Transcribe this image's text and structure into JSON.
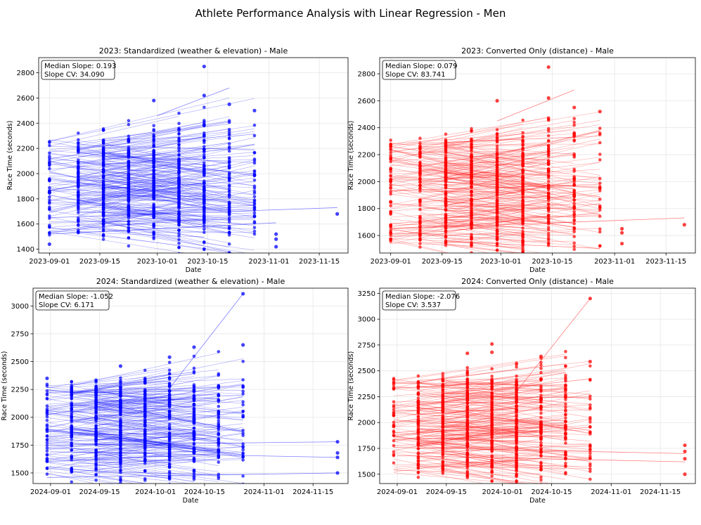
{
  "figure": {
    "title": "Athlete Performance Analysis with Linear Regression - Men",
    "colors": {
      "standardized": "#0000ff",
      "converted": "#ff0000"
    }
  },
  "chart_data": [
    {
      "type": "scatter",
      "title": "2023: Standardized (weather & elevation) - Male",
      "xlabel": "Date",
      "ylabel": "Race Time (seconds)",
      "xlim": [
        "2023-08-29",
        "2023-11-23"
      ],
      "ylim": [
        1370,
        2920
      ],
      "xticks": [
        "2023-09-01",
        "2023-09-15",
        "2023-10-01",
        "2023-10-15",
        "2023-11-01",
        "2023-11-15"
      ],
      "yticks": [
        1400,
        1600,
        1800,
        2000,
        2200,
        2400,
        2600,
        2800
      ],
      "color": "#0000ff",
      "annotation": {
        "line1": "Median Slope: 0.193",
        "line2": "Slope CV: 34.090"
      },
      "race_dates": [
        "2023-09-01",
        "2023-09-09",
        "2023-09-16",
        "2023-09-23",
        "2023-09-30",
        "2023-10-07",
        "2023-10-14",
        "2023-10-21",
        "2023-10-28"
      ],
      "y_range": [
        1520,
        2280
      ],
      "n_athletes": 220,
      "outliers": [
        {
          "x": "2023-09-01",
          "y": 1850
        },
        {
          "x": "2023-09-01",
          "y": 1440
        },
        {
          "x": "2023-09-30",
          "y": 2580
        },
        {
          "x": "2023-10-14",
          "y": 2850
        },
        {
          "x": "2023-10-14",
          "y": 2620
        },
        {
          "x": "2023-10-21",
          "y": 2550
        },
        {
          "x": "2023-10-28",
          "y": 2500
        },
        {
          "x": "2023-11-03",
          "y": 1520
        },
        {
          "x": "2023-11-03",
          "y": 1480
        },
        {
          "x": "2023-11-03",
          "y": 1420
        },
        {
          "x": "2023-11-20",
          "y": 1680
        }
      ],
      "regression_lines": [
        {
          "x": [
            "2023-10-01",
            "2023-10-21"
          ],
          "y": [
            2460,
            2680
          ]
        },
        {
          "x": [
            "2023-09-01",
            "2023-11-20"
          ],
          "y": [
            1650,
            1730
          ]
        },
        {
          "x": [
            "2023-09-01",
            "2023-11-03"
          ],
          "y": [
            1520,
            1610
          ]
        }
      ]
    },
    {
      "type": "scatter",
      "title": "2023: Converted Only (distance) - Male",
      "xlabel": "Date",
      "ylabel": "Race Time (seconds)",
      "xlim": [
        "2023-08-29",
        "2023-11-23"
      ],
      "ylim": [
        1470,
        2920
      ],
      "xticks": [
        "2023-09-01",
        "2023-09-15",
        "2023-10-01",
        "2023-10-15",
        "2023-11-01",
        "2023-11-15"
      ],
      "yticks": [
        1600,
        1800,
        2000,
        2200,
        2400,
        2600,
        2800
      ],
      "color": "#ff0000",
      "annotation": {
        "line1": "Median Slope: 0.079",
        "line2": "Slope CV: 83.741"
      },
      "race_dates": [
        "2023-09-01",
        "2023-09-09",
        "2023-09-16",
        "2023-09-23",
        "2023-09-30",
        "2023-10-07",
        "2023-10-14",
        "2023-10-21",
        "2023-10-28"
      ],
      "y_range": [
        1530,
        2300
      ],
      "n_athletes": 220,
      "outliers": [
        {
          "x": "2023-09-01",
          "y": 1850
        },
        {
          "x": "2023-09-30",
          "y": 2600
        },
        {
          "x": "2023-10-14",
          "y": 2850
        },
        {
          "x": "2023-10-14",
          "y": 2620
        },
        {
          "x": "2023-10-21",
          "y": 2550
        },
        {
          "x": "2023-10-28",
          "y": 2520
        },
        {
          "x": "2023-11-03",
          "y": 1650
        },
        {
          "x": "2023-11-03",
          "y": 1620
        },
        {
          "x": "2023-11-03",
          "y": 1540
        },
        {
          "x": "2023-11-20",
          "y": 1680
        }
      ],
      "regression_lines": [
        {
          "x": [
            "2023-09-30",
            "2023-10-21"
          ],
          "y": [
            2450,
            2680
          ]
        },
        {
          "x": [
            "2023-09-01",
            "2023-11-20"
          ],
          "y": [
            1650,
            1730
          ]
        }
      ]
    },
    {
      "type": "scatter",
      "title": "2024: Standardized (weather & elevation) - Male",
      "xlabel": "Date",
      "ylabel": "Race Time (seconds)",
      "xlim": [
        "2024-08-27",
        "2024-11-25"
      ],
      "ylim": [
        1405,
        3160
      ],
      "xticks": [
        "2024-09-01",
        "2024-09-15",
        "2024-10-01",
        "2024-10-15",
        "2024-11-01",
        "2024-11-15"
      ],
      "yticks": [
        1500,
        1750,
        2000,
        2250,
        2500,
        2750,
        3000
      ],
      "color": "#0000ff",
      "annotation": {
        "line1": "Median Slope: -1.052",
        "line2": "Slope CV: 6.171"
      },
      "race_dates": [
        "2024-08-31",
        "2024-09-07",
        "2024-09-14",
        "2024-09-21",
        "2024-09-28",
        "2024-10-05",
        "2024-10-12",
        "2024-10-19",
        "2024-10-26"
      ],
      "y_range": [
        1480,
        2300
      ],
      "n_athletes": 220,
      "outliers": [
        {
          "x": "2024-08-31",
          "y": 2350
        },
        {
          "x": "2024-10-05",
          "y": 2540
        },
        {
          "x": "2024-10-12",
          "y": 2630
        },
        {
          "x": "2024-10-26",
          "y": 3110
        },
        {
          "x": "2024-10-26",
          "y": 2650
        },
        {
          "x": "2024-09-21",
          "y": 2460
        },
        {
          "x": "2024-11-22",
          "y": 1780
        },
        {
          "x": "2024-11-22",
          "y": 1680
        },
        {
          "x": "2024-11-22",
          "y": 1640
        },
        {
          "x": "2024-11-22",
          "y": 1500
        }
      ],
      "regression_lines": [
        {
          "x": [
            "2024-10-05",
            "2024-10-26"
          ],
          "y": [
            2260,
            3110
          ]
        },
        {
          "x": [
            "2024-08-31",
            "2024-11-22"
          ],
          "y": [
            1750,
            1780
          ]
        },
        {
          "x": [
            "2024-09-01",
            "2024-11-22"
          ],
          "y": [
            1690,
            1640
          ]
        },
        {
          "x": [
            "2024-08-31",
            "2024-11-22"
          ],
          "y": [
            1460,
            1500
          ]
        }
      ]
    },
    {
      "type": "scatter",
      "title": "2024: Converted Only (distance) - Male",
      "xlabel": "Date",
      "ylabel": "Race Time (seconds)",
      "xlim": [
        "2024-08-27",
        "2024-11-25"
      ],
      "ylim": [
        1410,
        3300
      ],
      "xticks": [
        "2024-09-01",
        "2024-09-15",
        "2024-10-01",
        "2024-10-15",
        "2024-11-01",
        "2024-11-15"
      ],
      "yticks": [
        1500,
        1750,
        2000,
        2250,
        2500,
        2750,
        3000,
        3250
      ],
      "color": "#ff0000",
      "annotation": {
        "line1": "Median Slope: -2.076",
        "line2": "Slope CV: 3.537"
      },
      "race_dates": [
        "2024-08-31",
        "2024-09-07",
        "2024-09-14",
        "2024-09-21",
        "2024-09-28",
        "2024-10-05",
        "2024-10-12",
        "2024-10-19",
        "2024-10-26"
      ],
      "y_range": [
        1490,
        2420
      ],
      "n_athletes": 220,
      "outliers": [
        {
          "x": "2024-09-28",
          "y": 2760
        },
        {
          "x": "2024-09-28",
          "y": 2680
        },
        {
          "x": "2024-10-12",
          "y": 2640
        },
        {
          "x": "2024-10-26",
          "y": 3200
        },
        {
          "x": "2024-10-26",
          "y": 2590
        },
        {
          "x": "2024-09-21",
          "y": 2670
        },
        {
          "x": "2024-11-22",
          "y": 1780
        },
        {
          "x": "2024-11-22",
          "y": 1720
        },
        {
          "x": "2024-11-22",
          "y": 1650
        },
        {
          "x": "2024-11-22",
          "y": 1500
        }
      ],
      "regression_lines": [
        {
          "x": [
            "2024-10-05",
            "2024-10-26"
          ],
          "y": [
            2300,
            3200
          ]
        },
        {
          "x": [
            "2024-08-31",
            "2024-11-22"
          ],
          "y": [
            1760,
            1700
          ]
        },
        {
          "x": [
            "2024-09-01",
            "2024-11-22"
          ],
          "y": [
            1680,
            1620
          ]
        }
      ]
    }
  ]
}
